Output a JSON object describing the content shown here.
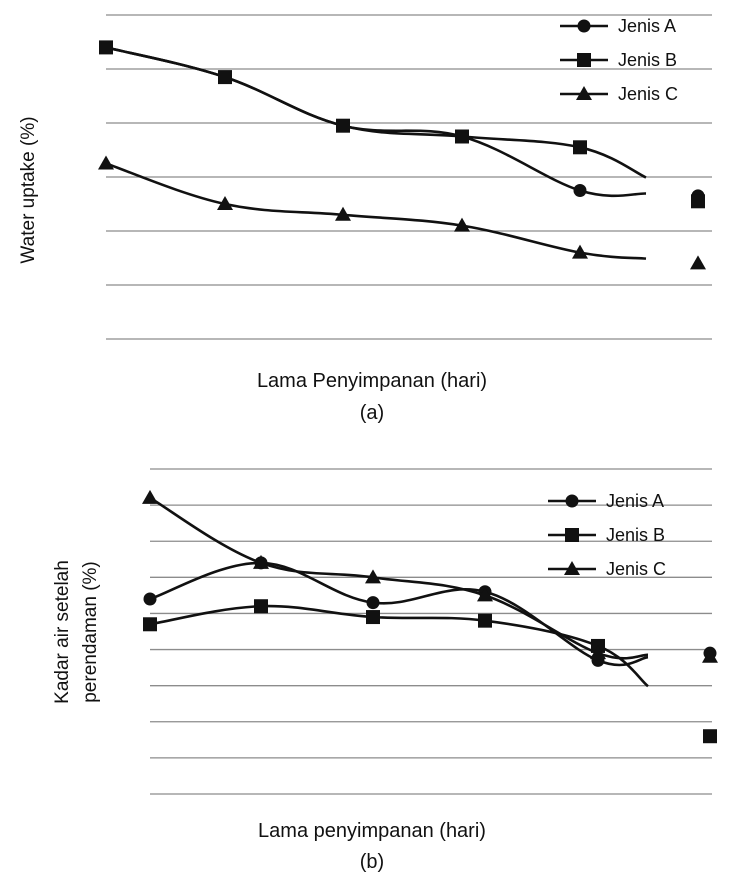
{
  "chart_data": [
    {
      "type": "line",
      "panel_label": "(a)",
      "xlabel": "Lama Penyimpanan (hari)",
      "ylabel": "Water uptake (%)",
      "x": [
        1,
        2,
        3,
        4,
        5,
        6
      ],
      "ylim": [
        0,
        6
      ],
      "gridlines": 7,
      "grid": true,
      "legend": "top-right",
      "series": [
        {
          "name": "Jenis A",
          "marker": "circle",
          "values": [
            5.4,
            4.85,
            3.95,
            3.75,
            2.75,
            2.65
          ]
        },
        {
          "name": "Jenis B",
          "marker": "square",
          "values": [
            5.4,
            4.85,
            3.95,
            3.75,
            3.55,
            2.55
          ]
        },
        {
          "name": "Jenis C",
          "marker": "triangle",
          "values": [
            3.25,
            2.5,
            2.3,
            2.1,
            1.6,
            1.4
          ]
        }
      ]
    },
    {
      "type": "line",
      "panel_label": "(b)",
      "xlabel": "Lama penyimpanan (hari)",
      "ylabel_lines": [
        "Kadar air setelah",
        "perendaman (%)"
      ],
      "x": [
        1,
        2,
        3,
        4,
        5,
        6
      ],
      "ylim": [
        0,
        9
      ],
      "gridlines": 10,
      "grid": true,
      "legend": "top-right",
      "series": [
        {
          "name": "Jenis A",
          "marker": "circle",
          "values": [
            5.4,
            6.4,
            5.3,
            5.6,
            3.7,
            3.9
          ]
        },
        {
          "name": "Jenis B",
          "marker": "square",
          "values": [
            4.7,
            5.2,
            4.9,
            4.8,
            4.1,
            1.6
          ]
        },
        {
          "name": "Jenis C",
          "marker": "triangle",
          "values": [
            8.2,
            6.4,
            6.0,
            5.5,
            3.9,
            3.8
          ]
        }
      ]
    }
  ]
}
